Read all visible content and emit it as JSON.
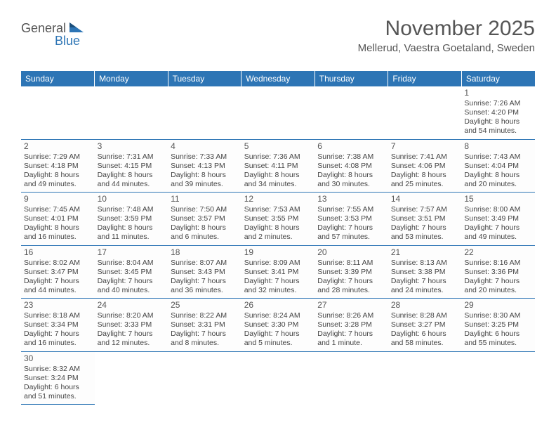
{
  "logo": {
    "general": "General",
    "blue": "Blue"
  },
  "title": "November 2025",
  "location": "Mellerud, Vaestra Goetaland, Sweden",
  "colors": {
    "header_bg": "#2d75b5",
    "header_fg": "#ffffff",
    "text": "#444444"
  },
  "weekdays": [
    "Sunday",
    "Monday",
    "Tuesday",
    "Wednesday",
    "Thursday",
    "Friday",
    "Saturday"
  ],
  "weeks": [
    [
      null,
      null,
      null,
      null,
      null,
      null,
      {
        "n": "1",
        "sr": "Sunrise: 7:26 AM",
        "ss": "Sunset: 4:20 PM",
        "dl": "Daylight: 8 hours and 54 minutes."
      }
    ],
    [
      {
        "n": "2",
        "sr": "Sunrise: 7:29 AM",
        "ss": "Sunset: 4:18 PM",
        "dl": "Daylight: 8 hours and 49 minutes."
      },
      {
        "n": "3",
        "sr": "Sunrise: 7:31 AM",
        "ss": "Sunset: 4:15 PM",
        "dl": "Daylight: 8 hours and 44 minutes."
      },
      {
        "n": "4",
        "sr": "Sunrise: 7:33 AM",
        "ss": "Sunset: 4:13 PM",
        "dl": "Daylight: 8 hours and 39 minutes."
      },
      {
        "n": "5",
        "sr": "Sunrise: 7:36 AM",
        "ss": "Sunset: 4:11 PM",
        "dl": "Daylight: 8 hours and 34 minutes."
      },
      {
        "n": "6",
        "sr": "Sunrise: 7:38 AM",
        "ss": "Sunset: 4:08 PM",
        "dl": "Daylight: 8 hours and 30 minutes."
      },
      {
        "n": "7",
        "sr": "Sunrise: 7:41 AM",
        "ss": "Sunset: 4:06 PM",
        "dl": "Daylight: 8 hours and 25 minutes."
      },
      {
        "n": "8",
        "sr": "Sunrise: 7:43 AM",
        "ss": "Sunset: 4:04 PM",
        "dl": "Daylight: 8 hours and 20 minutes."
      }
    ],
    [
      {
        "n": "9",
        "sr": "Sunrise: 7:45 AM",
        "ss": "Sunset: 4:01 PM",
        "dl": "Daylight: 8 hours and 16 minutes."
      },
      {
        "n": "10",
        "sr": "Sunrise: 7:48 AM",
        "ss": "Sunset: 3:59 PM",
        "dl": "Daylight: 8 hours and 11 minutes."
      },
      {
        "n": "11",
        "sr": "Sunrise: 7:50 AM",
        "ss": "Sunset: 3:57 PM",
        "dl": "Daylight: 8 hours and 6 minutes."
      },
      {
        "n": "12",
        "sr": "Sunrise: 7:53 AM",
        "ss": "Sunset: 3:55 PM",
        "dl": "Daylight: 8 hours and 2 minutes."
      },
      {
        "n": "13",
        "sr": "Sunrise: 7:55 AM",
        "ss": "Sunset: 3:53 PM",
        "dl": "Daylight: 7 hours and 57 minutes."
      },
      {
        "n": "14",
        "sr": "Sunrise: 7:57 AM",
        "ss": "Sunset: 3:51 PM",
        "dl": "Daylight: 7 hours and 53 minutes."
      },
      {
        "n": "15",
        "sr": "Sunrise: 8:00 AM",
        "ss": "Sunset: 3:49 PM",
        "dl": "Daylight: 7 hours and 49 minutes."
      }
    ],
    [
      {
        "n": "16",
        "sr": "Sunrise: 8:02 AM",
        "ss": "Sunset: 3:47 PM",
        "dl": "Daylight: 7 hours and 44 minutes."
      },
      {
        "n": "17",
        "sr": "Sunrise: 8:04 AM",
        "ss": "Sunset: 3:45 PM",
        "dl": "Daylight: 7 hours and 40 minutes."
      },
      {
        "n": "18",
        "sr": "Sunrise: 8:07 AM",
        "ss": "Sunset: 3:43 PM",
        "dl": "Daylight: 7 hours and 36 minutes."
      },
      {
        "n": "19",
        "sr": "Sunrise: 8:09 AM",
        "ss": "Sunset: 3:41 PM",
        "dl": "Daylight: 7 hours and 32 minutes."
      },
      {
        "n": "20",
        "sr": "Sunrise: 8:11 AM",
        "ss": "Sunset: 3:39 PM",
        "dl": "Daylight: 7 hours and 28 minutes."
      },
      {
        "n": "21",
        "sr": "Sunrise: 8:13 AM",
        "ss": "Sunset: 3:38 PM",
        "dl": "Daylight: 7 hours and 24 minutes."
      },
      {
        "n": "22",
        "sr": "Sunrise: 8:16 AM",
        "ss": "Sunset: 3:36 PM",
        "dl": "Daylight: 7 hours and 20 minutes."
      }
    ],
    [
      {
        "n": "23",
        "sr": "Sunrise: 8:18 AM",
        "ss": "Sunset: 3:34 PM",
        "dl": "Daylight: 7 hours and 16 minutes."
      },
      {
        "n": "24",
        "sr": "Sunrise: 8:20 AM",
        "ss": "Sunset: 3:33 PM",
        "dl": "Daylight: 7 hours and 12 minutes."
      },
      {
        "n": "25",
        "sr": "Sunrise: 8:22 AM",
        "ss": "Sunset: 3:31 PM",
        "dl": "Daylight: 7 hours and 8 minutes."
      },
      {
        "n": "26",
        "sr": "Sunrise: 8:24 AM",
        "ss": "Sunset: 3:30 PM",
        "dl": "Daylight: 7 hours and 5 minutes."
      },
      {
        "n": "27",
        "sr": "Sunrise: 8:26 AM",
        "ss": "Sunset: 3:28 PM",
        "dl": "Daylight: 7 hours and 1 minute."
      },
      {
        "n": "28",
        "sr": "Sunrise: 8:28 AM",
        "ss": "Sunset: 3:27 PM",
        "dl": "Daylight: 6 hours and 58 minutes."
      },
      {
        "n": "29",
        "sr": "Sunrise: 8:30 AM",
        "ss": "Sunset: 3:25 PM",
        "dl": "Daylight: 6 hours and 55 minutes."
      }
    ],
    [
      {
        "n": "30",
        "sr": "Sunrise: 8:32 AM",
        "ss": "Sunset: 3:24 PM",
        "dl": "Daylight: 6 hours and 51 minutes."
      },
      null,
      null,
      null,
      null,
      null,
      null
    ]
  ]
}
